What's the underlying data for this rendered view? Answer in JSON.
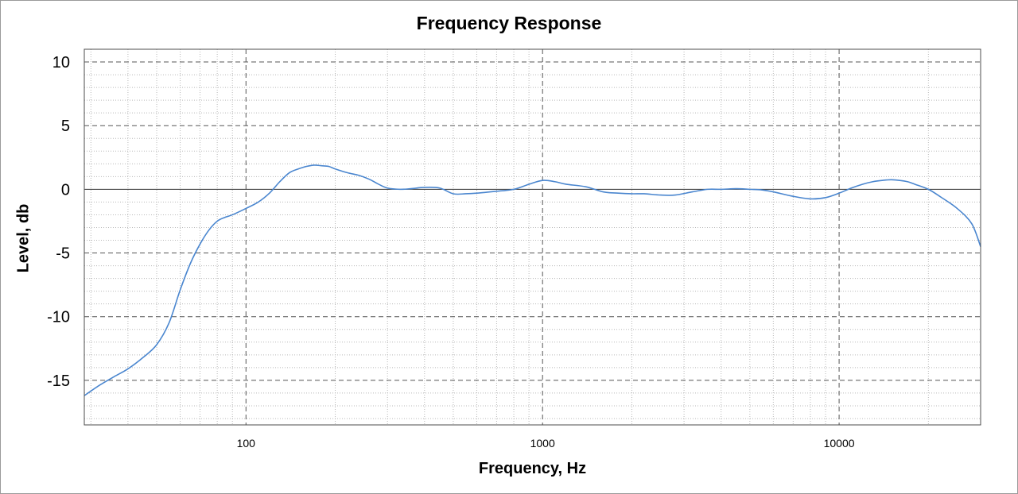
{
  "chart_data": {
    "type": "line",
    "title": "Frequency Response",
    "xlabel": "Frequency, Hz",
    "ylabel": "Level, db",
    "x_scale": "log",
    "xlim": [
      28.5,
      30000
    ],
    "ylim": [
      -18.5,
      11
    ],
    "x_ticks": [
      100,
      1000,
      10000
    ],
    "x_tick_labels": [
      "100",
      "1000",
      "10000"
    ],
    "y_ticks": [
      10,
      5,
      0,
      -5,
      -10,
      -15
    ],
    "y_tick_labels": [
      "10",
      "5",
      "0",
      "-5",
      "-10",
      "-15"
    ],
    "grid": true,
    "legend": "none",
    "series_color": "#4a86cf",
    "series": [
      {
        "x": [
          28.5,
          32,
          36,
          40,
          45,
          50,
          55,
          60,
          65,
          70,
          75,
          80,
          85,
          90,
          100,
          110,
          120,
          130,
          140,
          150,
          160,
          170,
          180,
          190,
          200,
          220,
          240,
          260,
          280,
          300,
          330,
          360,
          400,
          450,
          500,
          550,
          600,
          700,
          800,
          900,
          1000,
          1100,
          1200,
          1400,
          1600,
          1800,
          2000,
          2200,
          2500,
          2800,
          3200,
          3600,
          4000,
          4500,
          5000,
          5500,
          6000,
          7000,
          8000,
          9000,
          10000,
          11000,
          12000,
          13000,
          14000,
          15000,
          16000,
          17000,
          18000,
          20000,
          22000,
          25000,
          28000,
          30000
        ],
        "y": [
          -16.2,
          -15.4,
          -14.7,
          -14.1,
          -13.2,
          -12.2,
          -10.5,
          -7.9,
          -5.8,
          -4.3,
          -3.2,
          -2.5,
          -2.2,
          -2.0,
          -1.5,
          -1.0,
          -0.3,
          0.6,
          1.3,
          1.6,
          1.8,
          1.9,
          1.85,
          1.8,
          1.6,
          1.3,
          1.1,
          0.8,
          0.4,
          0.1,
          0.0,
          0.05,
          0.15,
          0.1,
          -0.35,
          -0.35,
          -0.3,
          -0.15,
          0.0,
          0.4,
          0.7,
          0.6,
          0.4,
          0.2,
          -0.2,
          -0.3,
          -0.35,
          -0.35,
          -0.45,
          -0.45,
          -0.2,
          0.0,
          0.0,
          0.05,
          0.0,
          -0.05,
          -0.2,
          -0.55,
          -0.75,
          -0.65,
          -0.3,
          0.1,
          0.4,
          0.6,
          0.7,
          0.75,
          0.7,
          0.6,
          0.4,
          0.0,
          -0.6,
          -1.5,
          -2.7,
          -4.5
        ]
      }
    ]
  }
}
